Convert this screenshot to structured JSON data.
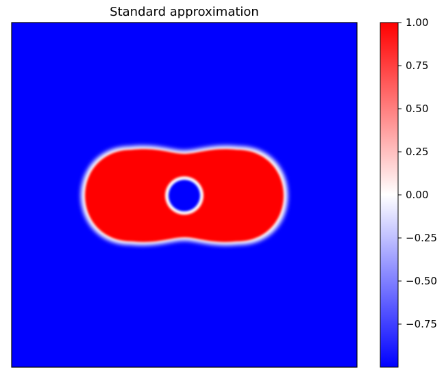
{
  "chart_data": {
    "type": "heatmap",
    "title": "Standard approximation",
    "xlabel": "",
    "ylabel": "",
    "show_axis_ticks": false,
    "colormap": "bwr",
    "colors": {
      "low": "#0000ff",
      "mid": "#ffffff",
      "high": "#ff0000"
    },
    "value_range": [
      -1.0,
      1.0
    ],
    "background_value": -1.0,
    "field": {
      "description_shape": "stadium (capsule) region of value 1.0 with a circular hole of value -1.0, thin white (0.0) interface",
      "inside_value": 1.0,
      "outside_value": -1.0,
      "interface_value": 0.0
    },
    "colorbar": {
      "ticks": [
        1.0,
        0.75,
        0.5,
        0.25,
        0.0,
        -0.25,
        -0.5,
        -0.75
      ],
      "tick_labels": [
        "1.00",
        "0.75",
        "0.50",
        "0.25",
        "0.00",
        "−0.25",
        "−0.50",
        "−0.75"
      ]
    }
  }
}
